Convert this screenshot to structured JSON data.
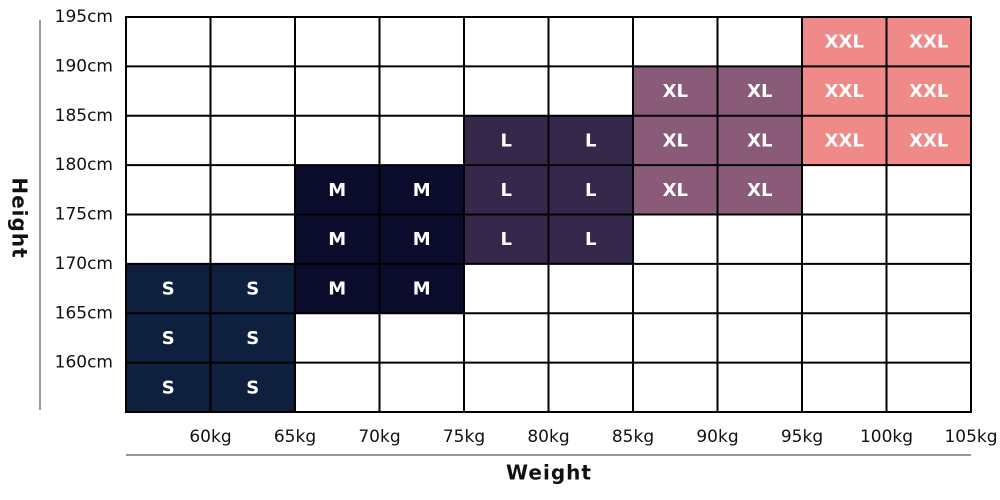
{
  "chart_data": {
    "type": "size-grid",
    "xlabel": "Weight",
    "ylabel": "Height",
    "xlim": [
      55,
      105
    ],
    "ylim": [
      155,
      195
    ],
    "xticks": [
      {
        "value": 60,
        "label": "60kg"
      },
      {
        "value": 65,
        "label": "65kg"
      },
      {
        "value": 70,
        "label": "70kg"
      },
      {
        "value": 75,
        "label": "75kg"
      },
      {
        "value": 80,
        "label": "80kg"
      },
      {
        "value": 85,
        "label": "85kg"
      },
      {
        "value": 90,
        "label": "90kg"
      },
      {
        "value": 95,
        "label": "95kg"
      },
      {
        "value": 100,
        "label": "100kg"
      },
      {
        "value": 105,
        "label": "105kg"
      }
    ],
    "yticks": [
      {
        "value": 160,
        "label": "160cm"
      },
      {
        "value": 165,
        "label": "165cm"
      },
      {
        "value": 170,
        "label": "170cm"
      },
      {
        "value": 175,
        "label": "175cm"
      },
      {
        "value": 180,
        "label": "180cm"
      },
      {
        "value": 185,
        "label": "185cm"
      },
      {
        "value": 190,
        "label": "190cm"
      },
      {
        "value": 195,
        "label": "195cm"
      }
    ],
    "colors": {
      "S": "#0f1f3e",
      "M": "#0b0c2b",
      "L": "#35284b",
      "XL": "#8a5b79",
      "XXL": "#f08a88"
    },
    "cells": [
      [
        null,
        null,
        null,
        null,
        null,
        null,
        null,
        null,
        "XXL",
        "XXL"
      ],
      [
        null,
        null,
        null,
        null,
        null,
        null,
        "XL",
        "XL",
        "XXL",
        "XXL"
      ],
      [
        null,
        null,
        null,
        null,
        "L",
        "L",
        "XL",
        "XL",
        "XXL",
        "XXL"
      ],
      [
        null,
        null,
        "M",
        "M",
        "L",
        "L",
        "XL",
        "XL",
        null,
        null
      ],
      [
        null,
        null,
        "M",
        "M",
        "L",
        "L",
        null,
        null,
        null,
        null
      ],
      [
        "S",
        "S",
        "M",
        "M",
        null,
        null,
        null,
        null,
        null,
        null
      ],
      [
        "S",
        "S",
        null,
        null,
        null,
        null,
        null,
        null,
        null,
        null
      ],
      [
        "S",
        "S",
        null,
        null,
        null,
        null,
        null,
        null,
        null,
        null
      ]
    ]
  }
}
